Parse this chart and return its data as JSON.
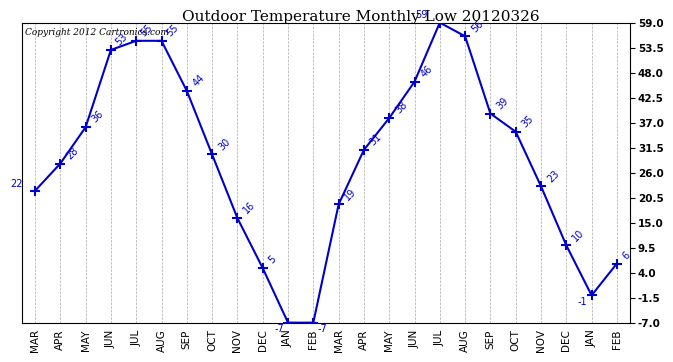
{
  "title": "Outdoor Temperature Monthly Low 20120326",
  "copyright_text": "Copyright 2012 Cartronics.com",
  "months": [
    "MAR",
    "APR",
    "MAY",
    "JUN",
    "JUL",
    "AUG",
    "SEP",
    "OCT",
    "NOV",
    "DEC",
    "JAN",
    "FEB",
    "MAR",
    "APR",
    "MAY",
    "JUN",
    "JUL",
    "AUG",
    "SEP",
    "OCT",
    "NOV",
    "DEC",
    "JAN",
    "FEB"
  ],
  "values": [
    22,
    28,
    36,
    53,
    55,
    55,
    44,
    30,
    16,
    5,
    -7,
    -7,
    19,
    31,
    38,
    46,
    59,
    56,
    39,
    35,
    23,
    10,
    -1,
    6
  ],
  "line_color": "#0000cc",
  "marker_color": "#0000cc",
  "bg_color": "#ffffff",
  "plot_bg_color": "#ffffff",
  "grid_color": "#aaaaaa",
  "ylim": [
    -7,
    59
  ],
  "yticks_right": [
    59.0,
    53.5,
    48.0,
    42.5,
    37.0,
    31.5,
    26.0,
    20.5,
    15.0,
    9.5,
    4.0,
    -1.5,
    -7.0
  ],
  "title_fontsize": 11,
  "tick_fontsize": 7.5,
  "label_fontsize": 7,
  "copyright_fontsize": 6.5
}
